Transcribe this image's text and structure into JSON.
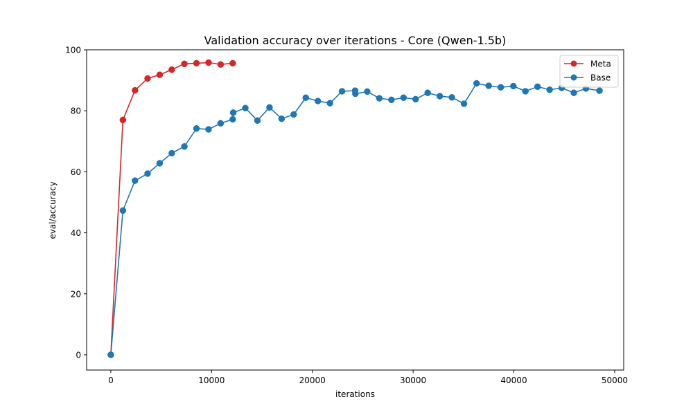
{
  "chart_data": {
    "type": "line",
    "title": "Validation accuracy over iterations - Core (Qwen-1.5b)",
    "xlabel": "iterations",
    "ylabel": "eval/accuracy",
    "xlim": [
      -2400,
      50900
    ],
    "ylim": [
      -5,
      100
    ],
    "xticks": [
      0,
      10000,
      20000,
      30000,
      40000,
      50000
    ],
    "yticks": [
      0,
      20,
      40,
      60,
      80,
      100
    ],
    "grid": false,
    "legend": "top-right",
    "series": [
      {
        "name": "Meta",
        "color": "#d62728",
        "marker": "circle",
        "x": [
          0,
          1200,
          2400,
          3650,
          4850,
          6050,
          7300,
          8500,
          9700,
          10900,
          12100
        ],
        "y": [
          0,
          77,
          86.7,
          90.6,
          91.8,
          93.5,
          95.4,
          95.6,
          95.8,
          95.2,
          95.6
        ]
      },
      {
        "name": "Base",
        "color": "#1f77b4",
        "marker": "circle",
        "x": [
          0,
          1200,
          2400,
          3650,
          4850,
          6050,
          7300,
          8500,
          9700,
          10900,
          12100,
          12150,
          13350,
          14550,
          15750,
          16950,
          18150,
          19350,
          20550,
          21750,
          22950,
          24250,
          24270,
          25450,
          26650,
          27850,
          29050,
          30250,
          31450,
          32650,
          33850,
          35050,
          36300,
          37500,
          38700,
          39950,
          41150,
          42350,
          43550,
          44750,
          45950,
          47150,
          48500
        ],
        "y": [
          0,
          47.3,
          57.1,
          59.4,
          62.8,
          66.1,
          68.3,
          74.2,
          73.9,
          75.9,
          77.2,
          79.4,
          80.9,
          76.8,
          81.1,
          77.4,
          78.8,
          84.3,
          83.2,
          82.5,
          86.4,
          86.6,
          85.6,
          86.3,
          84.1,
          83.6,
          84.3,
          83.8,
          85.9,
          84.8,
          84.4,
          82.3,
          89.0,
          88.2,
          87.7,
          88.1,
          86.4,
          87.9,
          86.9,
          87.5,
          85.9,
          87.3,
          86.6
        ]
      }
    ]
  }
}
